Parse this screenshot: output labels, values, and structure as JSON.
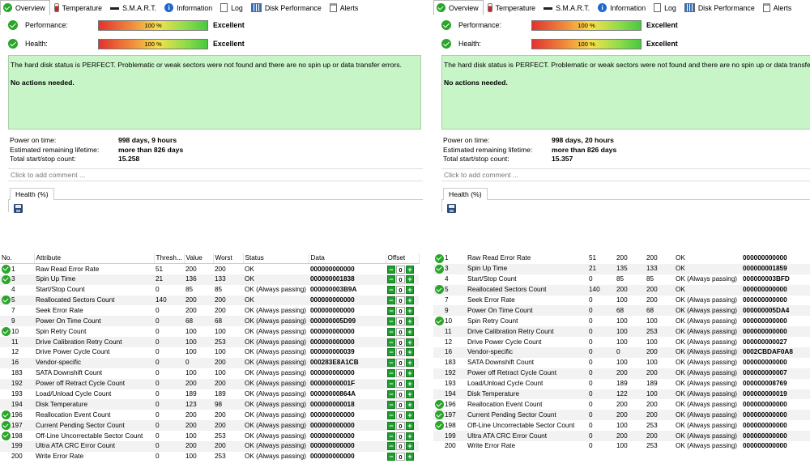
{
  "tabs": [
    {
      "label": "Overview",
      "icon": "ok-check-icon"
    },
    {
      "label": "Temperature",
      "icon": "thermometer-icon"
    },
    {
      "label": "S.M.A.R.T.",
      "icon": "smart-dash-icon"
    },
    {
      "label": "Information",
      "icon": "info-icon"
    },
    {
      "label": "Log",
      "icon": "log-icon"
    },
    {
      "label": "Disk Performance",
      "icon": "disk-performance-icon"
    },
    {
      "label": "Alerts",
      "icon": "alerts-icon"
    }
  ],
  "left": {
    "performance": {
      "label": "Performance:",
      "value": "100 %",
      "fill": 1.0,
      "rating": "Excellent"
    },
    "health": {
      "label": "Health:",
      "value": "100 %",
      "fill": 1.0,
      "rating": "Excellent"
    },
    "status_text": "The hard disk status is PERFECT. Problematic or weak sectors were not found and there are no spin up or data transfer errors.",
    "action_text": "No actions needed.",
    "power_on_label": "Power on time:",
    "power_on": "998 days, 9 hours",
    "lifetime_label": "Estimated remaining lifetime:",
    "lifetime": "more than 826 days",
    "startstop_label": "Total start/stop count:",
    "startstop": "15.258",
    "comment_placeholder": "Click to add comment ...",
    "health_tab": "Health (%)",
    "columns": [
      "No.",
      "Attribute",
      "Thresh...",
      "Value",
      "Worst",
      "Status",
      "Data",
      "Offset"
    ],
    "rows": [
      {
        "ok": true,
        "no": "1",
        "attr": "Raw Read Error Rate",
        "th": "51",
        "val": "200",
        "worst": "200",
        "status": "OK",
        "data": "000000000000",
        "offset": "0"
      },
      {
        "ok": true,
        "no": "3",
        "attr": "Spin Up Time",
        "th": "21",
        "val": "136",
        "worst": "133",
        "status": "OK",
        "data": "000000001838",
        "offset": "0"
      },
      {
        "ok": false,
        "no": "4",
        "attr": "Start/Stop Count",
        "th": "0",
        "val": "85",
        "worst": "85",
        "status": "OK (Always passing)",
        "data": "000000003B9A",
        "offset": "0"
      },
      {
        "ok": true,
        "no": "5",
        "attr": "Reallocated Sectors Count",
        "th": "140",
        "val": "200",
        "worst": "200",
        "status": "OK",
        "data": "000000000000",
        "offset": "0"
      },
      {
        "ok": false,
        "no": "7",
        "attr": "Seek Error Rate",
        "th": "0",
        "val": "200",
        "worst": "200",
        "status": "OK (Always passing)",
        "data": "000000000000",
        "offset": "0"
      },
      {
        "ok": false,
        "no": "9",
        "attr": "Power On Time Count",
        "th": "0",
        "val": "68",
        "worst": "68",
        "status": "OK (Always passing)",
        "data": "000000005D99",
        "offset": "0"
      },
      {
        "ok": true,
        "no": "10",
        "attr": "Spin Retry Count",
        "th": "0",
        "val": "100",
        "worst": "100",
        "status": "OK (Always passing)",
        "data": "000000000000",
        "offset": "0"
      },
      {
        "ok": false,
        "no": "11",
        "attr": "Drive Calibration Retry Count",
        "th": "0",
        "val": "100",
        "worst": "253",
        "status": "OK (Always passing)",
        "data": "000000000000",
        "offset": "0"
      },
      {
        "ok": false,
        "no": "12",
        "attr": "Drive Power Cycle Count",
        "th": "0",
        "val": "100",
        "worst": "100",
        "status": "OK (Always passing)",
        "data": "000000000039",
        "offset": "0"
      },
      {
        "ok": false,
        "no": "16",
        "attr": "Vendor-specific",
        "th": "0",
        "val": "0",
        "worst": "200",
        "status": "OK (Always passing)",
        "data": "000283E8A1CB",
        "offset": "0"
      },
      {
        "ok": false,
        "no": "183",
        "attr": "SATA Downshift Count",
        "th": "0",
        "val": "100",
        "worst": "100",
        "status": "OK (Always passing)",
        "data": "000000000000",
        "offset": "0"
      },
      {
        "ok": false,
        "no": "192",
        "attr": "Power off Retract Cycle Count",
        "th": "0",
        "val": "200",
        "worst": "200",
        "status": "OK (Always passing)",
        "data": "00000000001F",
        "offset": "0"
      },
      {
        "ok": false,
        "no": "193",
        "attr": "Load/Unload Cycle Count",
        "th": "0",
        "val": "189",
        "worst": "189",
        "status": "OK (Always passing)",
        "data": "00000000864A",
        "offset": "0"
      },
      {
        "ok": false,
        "no": "194",
        "attr": "Disk Temperature",
        "th": "0",
        "val": "123",
        "worst": "98",
        "status": "OK (Always passing)",
        "data": "000000000018",
        "offset": "0"
      },
      {
        "ok": true,
        "no": "196",
        "attr": "Reallocation Event Count",
        "th": "0",
        "val": "200",
        "worst": "200",
        "status": "OK (Always passing)",
        "data": "000000000000",
        "offset": "0"
      },
      {
        "ok": true,
        "no": "197",
        "attr": "Current Pending Sector Count",
        "th": "0",
        "val": "200",
        "worst": "200",
        "status": "OK (Always passing)",
        "data": "000000000000",
        "offset": "0"
      },
      {
        "ok": true,
        "no": "198",
        "attr": "Off-Line Uncorrectable Sector Count",
        "th": "0",
        "val": "100",
        "worst": "253",
        "status": "OK (Always passing)",
        "data": "000000000000",
        "offset": "0"
      },
      {
        "ok": false,
        "no": "199",
        "attr": "Ultra ATA CRC Error Count",
        "th": "0",
        "val": "200",
        "worst": "200",
        "status": "OK (Always passing)",
        "data": "000000000000",
        "offset": "0"
      },
      {
        "ok": false,
        "no": "200",
        "attr": "Write Error Rate",
        "th": "0",
        "val": "100",
        "worst": "253",
        "status": "OK (Always passing)",
        "data": "000000000000",
        "offset": "0"
      }
    ]
  },
  "right": {
    "performance": {
      "label": "Performance:",
      "value": "100 %",
      "fill": 1.0,
      "rating": "Excellent"
    },
    "health": {
      "label": "Health:",
      "value": "100 %",
      "fill": 1.0,
      "rating": "Excellent"
    },
    "status_text": "The hard disk status is PERFECT. Problematic or weak sectors were not found and there are no spin up or data transfer errors.",
    "action_text": "No actions needed.",
    "power_on_label": "Power on time:",
    "power_on": "998 days, 20 hours",
    "lifetime_label": "Estimated remaining lifetime:",
    "lifetime": "more than 826 days",
    "startstop_label": "Total start/stop count:",
    "startstop": "15.357",
    "comment_placeholder": "Click to add comment ...",
    "health_tab": "Health (%)",
    "rows": [
      {
        "ok": true,
        "no": "1",
        "attr": "Raw Read Error Rate",
        "th": "51",
        "val": "200",
        "worst": "200",
        "status": "OK",
        "data": "000000000000"
      },
      {
        "ok": true,
        "no": "3",
        "attr": "Spin Up Time",
        "th": "21",
        "val": "135",
        "worst": "133",
        "status": "OK",
        "data": "000000001859"
      },
      {
        "ok": false,
        "no": "4",
        "attr": "Start/Stop Count",
        "th": "0",
        "val": "85",
        "worst": "85",
        "status": "OK (Always passing)",
        "data": "000000003BFD"
      },
      {
        "ok": true,
        "no": "5",
        "attr": "Reallocated Sectors Count",
        "th": "140",
        "val": "200",
        "worst": "200",
        "status": "OK",
        "data": "000000000000"
      },
      {
        "ok": false,
        "no": "7",
        "attr": "Seek Error Rate",
        "th": "0",
        "val": "100",
        "worst": "200",
        "status": "OK (Always passing)",
        "data": "000000000000"
      },
      {
        "ok": false,
        "no": "9",
        "attr": "Power On Time Count",
        "th": "0",
        "val": "68",
        "worst": "68",
        "status": "OK (Always passing)",
        "data": "000000005DA4"
      },
      {
        "ok": true,
        "no": "10",
        "attr": "Spin Retry Count",
        "th": "0",
        "val": "100",
        "worst": "100",
        "status": "OK (Always passing)",
        "data": "000000000000"
      },
      {
        "ok": false,
        "no": "11",
        "attr": "Drive Calibration Retry Count",
        "th": "0",
        "val": "100",
        "worst": "253",
        "status": "OK (Always passing)",
        "data": "000000000000"
      },
      {
        "ok": false,
        "no": "12",
        "attr": "Drive Power Cycle Count",
        "th": "0",
        "val": "100",
        "worst": "100",
        "status": "OK (Always passing)",
        "data": "000000000027"
      },
      {
        "ok": false,
        "no": "16",
        "attr": "Vendor-specific",
        "th": "0",
        "val": "0",
        "worst": "200",
        "status": "OK (Always passing)",
        "data": "0002CBDAF0A8"
      },
      {
        "ok": false,
        "no": "183",
        "attr": "SATA Downshift Count",
        "th": "0",
        "val": "100",
        "worst": "100",
        "status": "OK (Always passing)",
        "data": "000000000000"
      },
      {
        "ok": false,
        "no": "192",
        "attr": "Power off Retract Cycle Count",
        "th": "0",
        "val": "200",
        "worst": "200",
        "status": "OK (Always passing)",
        "data": "000000000007"
      },
      {
        "ok": false,
        "no": "193",
        "attr": "Load/Unload Cycle Count",
        "th": "0",
        "val": "189",
        "worst": "189",
        "status": "OK (Always passing)",
        "data": "000000008769"
      },
      {
        "ok": false,
        "no": "194",
        "attr": "Disk Temperature",
        "th": "0",
        "val": "122",
        "worst": "100",
        "status": "OK (Always passing)",
        "data": "000000000019"
      },
      {
        "ok": true,
        "no": "196",
        "attr": "Reallocation Event Count",
        "th": "0",
        "val": "200",
        "worst": "200",
        "status": "OK (Always passing)",
        "data": "000000000000"
      },
      {
        "ok": true,
        "no": "197",
        "attr": "Current Pending Sector Count",
        "th": "0",
        "val": "200",
        "worst": "200",
        "status": "OK (Always passing)",
        "data": "000000000000"
      },
      {
        "ok": true,
        "no": "198",
        "attr": "Off-Line Uncorrectable Sector Count",
        "th": "0",
        "val": "100",
        "worst": "253",
        "status": "OK (Always passing)",
        "data": "000000000000"
      },
      {
        "ok": false,
        "no": "199",
        "attr": "Ultra ATA CRC Error Count",
        "th": "0",
        "val": "200",
        "worst": "200",
        "status": "OK (Always passing)",
        "data": "000000000000"
      },
      {
        "ok": false,
        "no": "200",
        "attr": "Write Error Rate",
        "th": "0",
        "val": "100",
        "worst": "253",
        "status": "OK (Always passing)",
        "data": "000000000000"
      }
    ]
  }
}
